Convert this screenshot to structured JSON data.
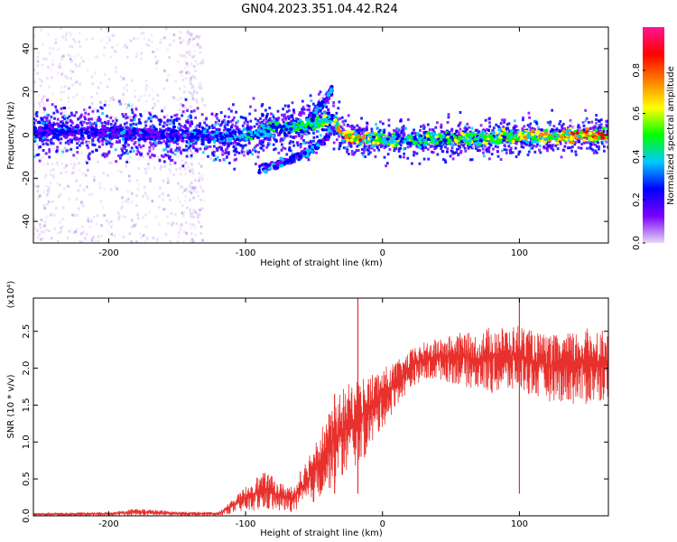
{
  "figure_title": "GN04.2023.351.04.42.R24",
  "colors": {
    "snr_line": "#e8302c",
    "scatter_density_palette": [
      "#e6dcf5",
      "#c9aef0",
      "#9b5cf0",
      "#6a00ff",
      "#3b1ee6",
      "#1a7af0",
      "#12d1e0",
      "#22e07a",
      "#6ad21a",
      "#d6e000",
      "#ff8c00",
      "#ff1a1a",
      "#ff1493"
    ]
  },
  "chart_data": [
    {
      "id": "spectrogram",
      "type": "heatmap",
      "title": "",
      "xlabel": "Height of straight line (km)",
      "ylabel": "Frequency (Hz)",
      "xlim": [
        -255,
        165
      ],
      "ylim": [
        -50,
        50
      ],
      "x_ticks": [
        -200,
        -100,
        0,
        100
      ],
      "x_tick_labels": [
        "-200",
        "-100",
        "0",
        "100"
      ],
      "y_ticks": [
        -40,
        -20,
        0,
        20,
        40
      ],
      "y_tick_labels": [
        "-40",
        "-20",
        "0",
        "20",
        "40"
      ],
      "grid": false,
      "colorbar": {
        "label": "Normalized spectral amplitude",
        "range": [
          0.0,
          1.0
        ],
        "ticks": [
          0.0,
          0.2,
          0.4,
          0.6,
          0.8
        ],
        "tick_labels": [
          "0.0",
          "0.2",
          "0.4",
          "0.6",
          "0.8"
        ],
        "colormap": [
          "#e6d9f2",
          "#7a00ff",
          "#0000ff",
          "#00c8ff",
          "#00ff00",
          "#ffff00",
          "#ff8000",
          "#ff0000",
          "#ff1493"
        ]
      },
      "features": {
        "main_band": {
          "x": [
            -255,
            -200,
            -150,
            -120,
            -100,
            -80,
            -60,
            -45,
            -35,
            -30,
            -20,
            0,
            50,
            100,
            165
          ],
          "freq_center": [
            2,
            1,
            0,
            -1,
            0,
            3,
            4,
            6,
            7,
            0,
            -1,
            -2,
            -2,
            -1,
            0
          ],
          "amplitude": [
            0.35,
            0.35,
            0.35,
            0.45,
            0.5,
            0.5,
            0.55,
            0.6,
            0.65,
            0.8,
            0.9,
            0.6,
            0.6,
            0.7,
            0.95
          ]
        },
        "rising_arc": {
          "x": [
            -50,
            -45,
            -40,
            -37
          ],
          "freq": [
            10,
            14,
            18,
            21
          ]
        },
        "descending_arc": {
          "x": [
            -90,
            -80,
            -70,
            -60,
            -50,
            -42,
            -36
          ],
          "freq": [
            -16,
            -14,
            -12,
            -10,
            -6,
            -2,
            4
          ]
        },
        "sparse_noise_region": {
          "x_range": [
            -255,
            -130
          ],
          "freq_range": [
            -50,
            50
          ]
        }
      }
    },
    {
      "id": "snr",
      "type": "line",
      "title": "",
      "xlabel": "Height of straight line (km)",
      "ylabel": "SNR (10 * v/v)",
      "y_multiplier": "(x10⁴)",
      "xlim": [
        -255,
        165
      ],
      "ylim": [
        0.0,
        2.95
      ],
      "x_ticks": [
        -200,
        -100,
        0,
        100
      ],
      "x_tick_labels": [
        "-200",
        "-100",
        "0",
        "100"
      ],
      "y_ticks": [
        0.0,
        0.5,
        1.0,
        1.5,
        2.0,
        2.5
      ],
      "y_tick_labels": [
        "0.0",
        "0.5",
        "1.0",
        "1.5",
        "2.0",
        "2.5"
      ],
      "grid": false,
      "series": [
        {
          "color": "#e8302c",
          "envelope_x": [
            -255,
            -200,
            -180,
            -150,
            -120,
            -105,
            -95,
            -85,
            -75,
            -65,
            -55,
            -48,
            -42,
            -36,
            -30,
            -24,
            -18,
            -12,
            -6,
            0,
            5,
            10,
            15,
            20,
            25,
            30,
            40,
            50,
            60,
            70,
            80,
            90,
            100,
            110,
            120,
            130,
            140,
            150,
            160,
            165
          ],
          "envelope_lo": [
            0.0,
            0.0,
            0.0,
            0.0,
            0.0,
            0.05,
            0.05,
            0.08,
            0.05,
            0.05,
            0.1,
            0.2,
            0.3,
            0.4,
            0.5,
            0.6,
            0.7,
            0.8,
            1.0,
            1.2,
            1.3,
            1.5,
            1.6,
            1.7,
            1.8,
            1.8,
            1.85,
            1.8,
            1.75,
            1.7,
            1.65,
            1.65,
            1.7,
            1.6,
            1.55,
            1.55,
            1.5,
            1.5,
            1.55,
            1.6
          ],
          "envelope_hi": [
            0.04,
            0.05,
            0.1,
            0.06,
            0.05,
            0.3,
            0.5,
            0.6,
            0.45,
            0.4,
            0.8,
            1.1,
            1.3,
            1.5,
            1.7,
            1.8,
            1.85,
            1.9,
            1.95,
            2.0,
            2.05,
            2.1,
            2.15,
            2.25,
            2.3,
            2.35,
            2.4,
            2.45,
            2.5,
            2.45,
            2.6,
            2.55,
            2.6,
            2.5,
            2.45,
            2.45,
            2.5,
            2.55,
            2.55,
            2.5
          ],
          "spikes": [
            {
              "x": -18,
              "y": 2.95
            },
            {
              "x": 100,
              "y": 2.95
            },
            {
              "x": -35,
              "y": 1.65
            },
            {
              "x": -60,
              "y": 0.6
            }
          ]
        }
      ]
    }
  ]
}
